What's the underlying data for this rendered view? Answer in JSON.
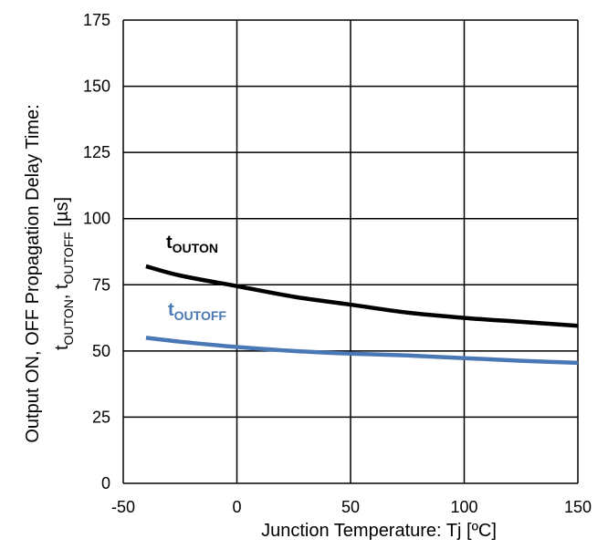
{
  "chart_data": {
    "type": "line",
    "xlabel": "Junction Temperature: Tj [ºC]",
    "ylabel": {
      "line1": "Output ON, OFF Propagation Delay Time:",
      "t1": "t",
      "t1_sub": "OUTON",
      "sep": ", ",
      "t2": "t",
      "t2_sub": "OUTOFF",
      "unit": " [µs]"
    },
    "xlim": [
      -50,
      150
    ],
    "ylim": [
      0,
      175
    ],
    "x_ticks": [
      -50,
      0,
      50,
      100,
      150
    ],
    "y_ticks": [
      0,
      25,
      50,
      75,
      100,
      125,
      150,
      175
    ],
    "x_tick_labels": [
      "-50",
      "0",
      "50",
      "100",
      "150"
    ],
    "y_tick_labels": [
      "0",
      "25",
      "50",
      "75",
      "100",
      "125",
      "150",
      "175"
    ],
    "grid": true,
    "series": [
      {
        "name_main": "t",
        "name_sub": "OUTON",
        "color": "#000000",
        "x": [
          -40,
          -25,
          0,
          25,
          50,
          75,
          100,
          125,
          150
        ],
        "y": [
          82,
          78.5,
          74.5,
          70.5,
          67.5,
          64.5,
          62.5,
          61,
          59.5
        ]
      },
      {
        "name_main": "t",
        "name_sub": "OUTOFF",
        "color": "#4a78b5",
        "x": [
          -40,
          -25,
          0,
          25,
          50,
          75,
          100,
          125,
          150
        ],
        "y": [
          55,
          53.5,
          51.5,
          50,
          49,
          48.3,
          47.3,
          46.3,
          45.5
        ]
      }
    ]
  }
}
